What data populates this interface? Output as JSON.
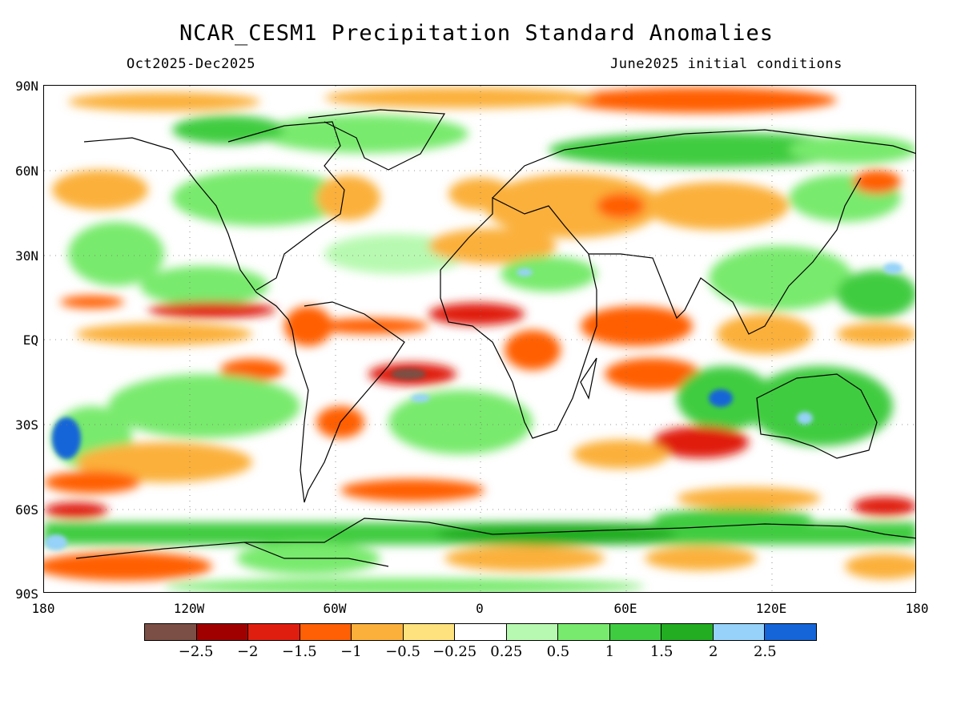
{
  "title": "NCAR_CESM1 Precipitation Standard Anomalies",
  "subtitle_left": "Oct2025-Dec2025",
  "subtitle_right": "June2025 initial conditions",
  "lat_labels": [
    "90N",
    "60N",
    "30N",
    "EQ",
    "30S",
    "60S",
    "90S"
  ],
  "lon_labels": [
    "180",
    "120W",
    "60W",
    "0",
    "60E",
    "120E",
    "180"
  ],
  "colorbar": {
    "colors": [
      "#7b4f45",
      "#a00000",
      "#e01e0f",
      "#ff5f05",
      "#fbb03b",
      "#fee27d",
      "#ffffff",
      "#b7f9b0",
      "#78ea6d",
      "#3fcc41",
      "#22ad22",
      "#96d2f9",
      "#1565d8"
    ],
    "labels": [
      "-2.5",
      "-2",
      "-1.5",
      "-1",
      "-0.5",
      "-0.25",
      "0.25",
      "0.5",
      "1",
      "1.5",
      "2",
      "2.5"
    ]
  }
}
